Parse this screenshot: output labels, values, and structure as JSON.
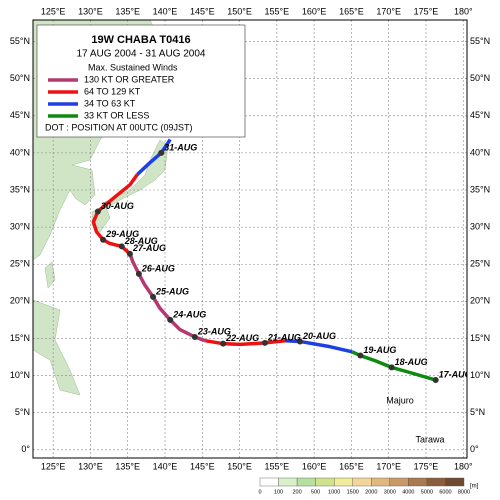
{
  "title": "19W  CHABA  T0416",
  "period": "17 AUG 2004 - 31 AUG 2004",
  "legend": {
    "heading": "Max. Sustained Winds",
    "entries": [
      {
        "label": "130 KT OR GREATER",
        "color": "#b5386f"
      },
      {
        "label": "64 TO 129 KT",
        "color": "#ee1111"
      },
      {
        "label": "34 TO 63 KT",
        "color": "#1f3fe6"
      },
      {
        "label": "33 KT OR LESS",
        "color": "#0e8a10"
      }
    ],
    "dot_note": "DOT : POSITION AT 00UTC (09JST)"
  },
  "map": {
    "xlim": [
      122.3,
      180.5
    ],
    "ylim": [
      -1.1,
      57.9
    ],
    "lon_ticks": [
      {
        "value": 125,
        "label": "125°E"
      },
      {
        "value": 130,
        "label": "130°E"
      },
      {
        "value": 135,
        "label": "135°E"
      },
      {
        "value": 140,
        "label": "140°E"
      },
      {
        "value": 145,
        "label": "145°E"
      },
      {
        "value": 150,
        "label": "150°E"
      },
      {
        "value": 155,
        "label": "155°E"
      },
      {
        "value": 160,
        "label": "160°E"
      },
      {
        "value": 165,
        "label": "165°E"
      },
      {
        "value": 170,
        "label": "170°E"
      },
      {
        "value": 175,
        "label": "175°E"
      },
      {
        "value": 180,
        "label": "180°"
      }
    ],
    "lat_ticks": [
      {
        "value": 0,
        "label": "0°"
      },
      {
        "value": 5,
        "label": "5°N"
      },
      {
        "value": 10,
        "label": "10°N"
      },
      {
        "value": 15,
        "label": "15°N"
      },
      {
        "value": 20,
        "label": "20°N"
      },
      {
        "value": 25,
        "label": "25°N"
      },
      {
        "value": 30,
        "label": "30°N"
      },
      {
        "value": 35,
        "label": "35°N"
      },
      {
        "value": 40,
        "label": "40°N"
      },
      {
        "value": 45,
        "label": "45°N"
      },
      {
        "value": 50,
        "label": "50°N"
      },
      {
        "value": 55,
        "label": "55°N"
      }
    ]
  },
  "track": {
    "segments": [
      {
        "color": "#0e8a10",
        "lon": [
          176.3,
          172.9,
          170.4,
          168.2,
          166.2,
          165.1
        ],
        "lat": [
          9.4,
          10.4,
          11.1,
          12.0,
          12.7,
          13.2
        ]
      },
      {
        "color": "#1f3fe6",
        "lon": [
          165.1,
          162.1,
          158.1,
          156.1
        ],
        "lat": [
          13.2,
          13.9,
          14.6,
          14.7
        ]
      },
      {
        "color": "#ee1111",
        "lon": [
          156.1,
          153.4,
          150.1,
          147.8,
          145.4
        ],
        "lat": [
          14.7,
          14.4,
          14.2,
          14.3,
          14.7
        ]
      },
      {
        "color": "#b5386f",
        "lon": [
          145.4,
          144.0,
          142.0,
          140.7,
          139.3,
          138.4,
          137.3,
          136.5,
          135.7,
          135.3
        ],
        "lat": [
          14.7,
          15.2,
          16.2,
          17.5,
          19.1,
          20.6,
          22.2,
          23.7,
          25.3,
          26.4
        ]
      },
      {
        "color": "#ee1111",
        "lon": [
          135.3,
          134.2,
          132.6,
          131.7,
          130.8,
          130.4,
          131.0,
          132.0,
          133.7,
          135.3,
          136.3
        ],
        "lat": [
          26.4,
          27.4,
          27.8,
          28.3,
          29.4,
          30.7,
          32.1,
          33.0,
          34.4,
          35.7,
          37.1
        ]
      },
      {
        "color": "#1f3fe6",
        "lon": [
          136.3,
          138.0,
          139.5,
          140.7
        ],
        "lat": [
          37.1,
          38.7,
          40.0,
          41.8
        ]
      }
    ],
    "positions": {
      "labels": [
        "17-AUG",
        "18-AUG",
        "19-AUG",
        "20-AUG",
        "21-AUG",
        "22-AUG",
        "23-AUG",
        "24-AUG",
        "25-AUG",
        "26-AUG",
        "27-AUG",
        "28-AUG",
        "29-AUG",
        "30-AUG",
        "31-AUG"
      ],
      "lon": [
        176.3,
        170.4,
        166.2,
        158.1,
        153.4,
        147.8,
        144.0,
        140.7,
        138.4,
        136.5,
        135.3,
        134.2,
        131.7,
        131.0,
        139.5
      ],
      "lat": [
        9.4,
        11.1,
        12.7,
        14.6,
        14.4,
        14.3,
        15.2,
        17.5,
        20.6,
        23.7,
        26.4,
        27.4,
        28.3,
        32.1,
        40.0
      ]
    }
  },
  "places": [
    "Majuro",
    "Tarawa"
  ],
  "elevation_scale": {
    "levels": [
      0,
      100,
      200,
      500,
      1000,
      1500,
      2000,
      3000,
      4000,
      5000,
      6000,
      8000
    ],
    "colors": [
      "#ffffff",
      "#d9f0c8",
      "#b5e0a0",
      "#cfe38a",
      "#f0ec9a",
      "#f3d59a",
      "#e0b77e",
      "#c99a66",
      "#a97a50",
      "#8a5e3c",
      "#6e4a30"
    ],
    "unit": "[m]"
  }
}
